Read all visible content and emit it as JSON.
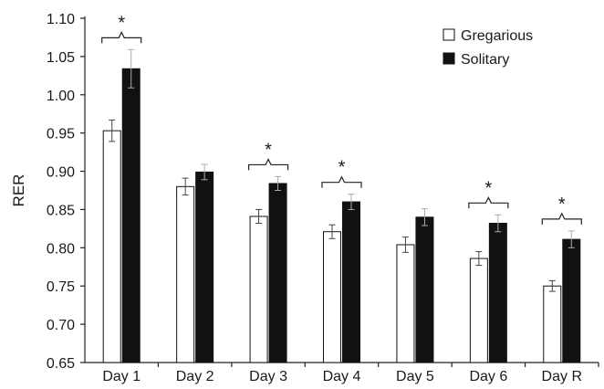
{
  "chart_data": {
    "type": "bar",
    "title": "",
    "xlabel": "",
    "ylabel": "RER",
    "ylim": [
      0.65,
      1.1
    ],
    "yticks": [
      "0.65",
      "0.70",
      "0.75",
      "0.80",
      "0.85",
      "0.90",
      "0.95",
      "1.00",
      "1.05",
      "1.10"
    ],
    "categories": [
      "Day 1",
      "Day 2",
      "Day 3",
      "Day 4",
      "Day 5",
      "Day 6",
      "Day R"
    ],
    "series": [
      {
        "name": "Gregarious",
        "color": "#ffffff",
        "values": [
          0.953,
          0.88,
          0.841,
          0.821,
          0.804,
          0.786,
          0.75
        ],
        "errors": [
          0.014,
          0.011,
          0.009,
          0.009,
          0.01,
          0.009,
          0.007
        ]
      },
      {
        "name": "Solitary",
        "color": "#111111",
        "values": [
          1.034,
          0.899,
          0.884,
          0.86,
          0.84,
          0.832,
          0.811
        ],
        "errors": [
          0.025,
          0.01,
          0.009,
          0.01,
          0.011,
          0.011,
          0.011
        ]
      }
    ],
    "significance": [
      {
        "category": "Day 1",
        "label": "*"
      },
      {
        "category": "Day 3",
        "label": "*"
      },
      {
        "category": "Day 4",
        "label": "*"
      },
      {
        "category": "Day 6",
        "label": "*"
      },
      {
        "category": "Day R",
        "label": "*"
      }
    ],
    "grid": false,
    "legend_position": "top-right"
  }
}
